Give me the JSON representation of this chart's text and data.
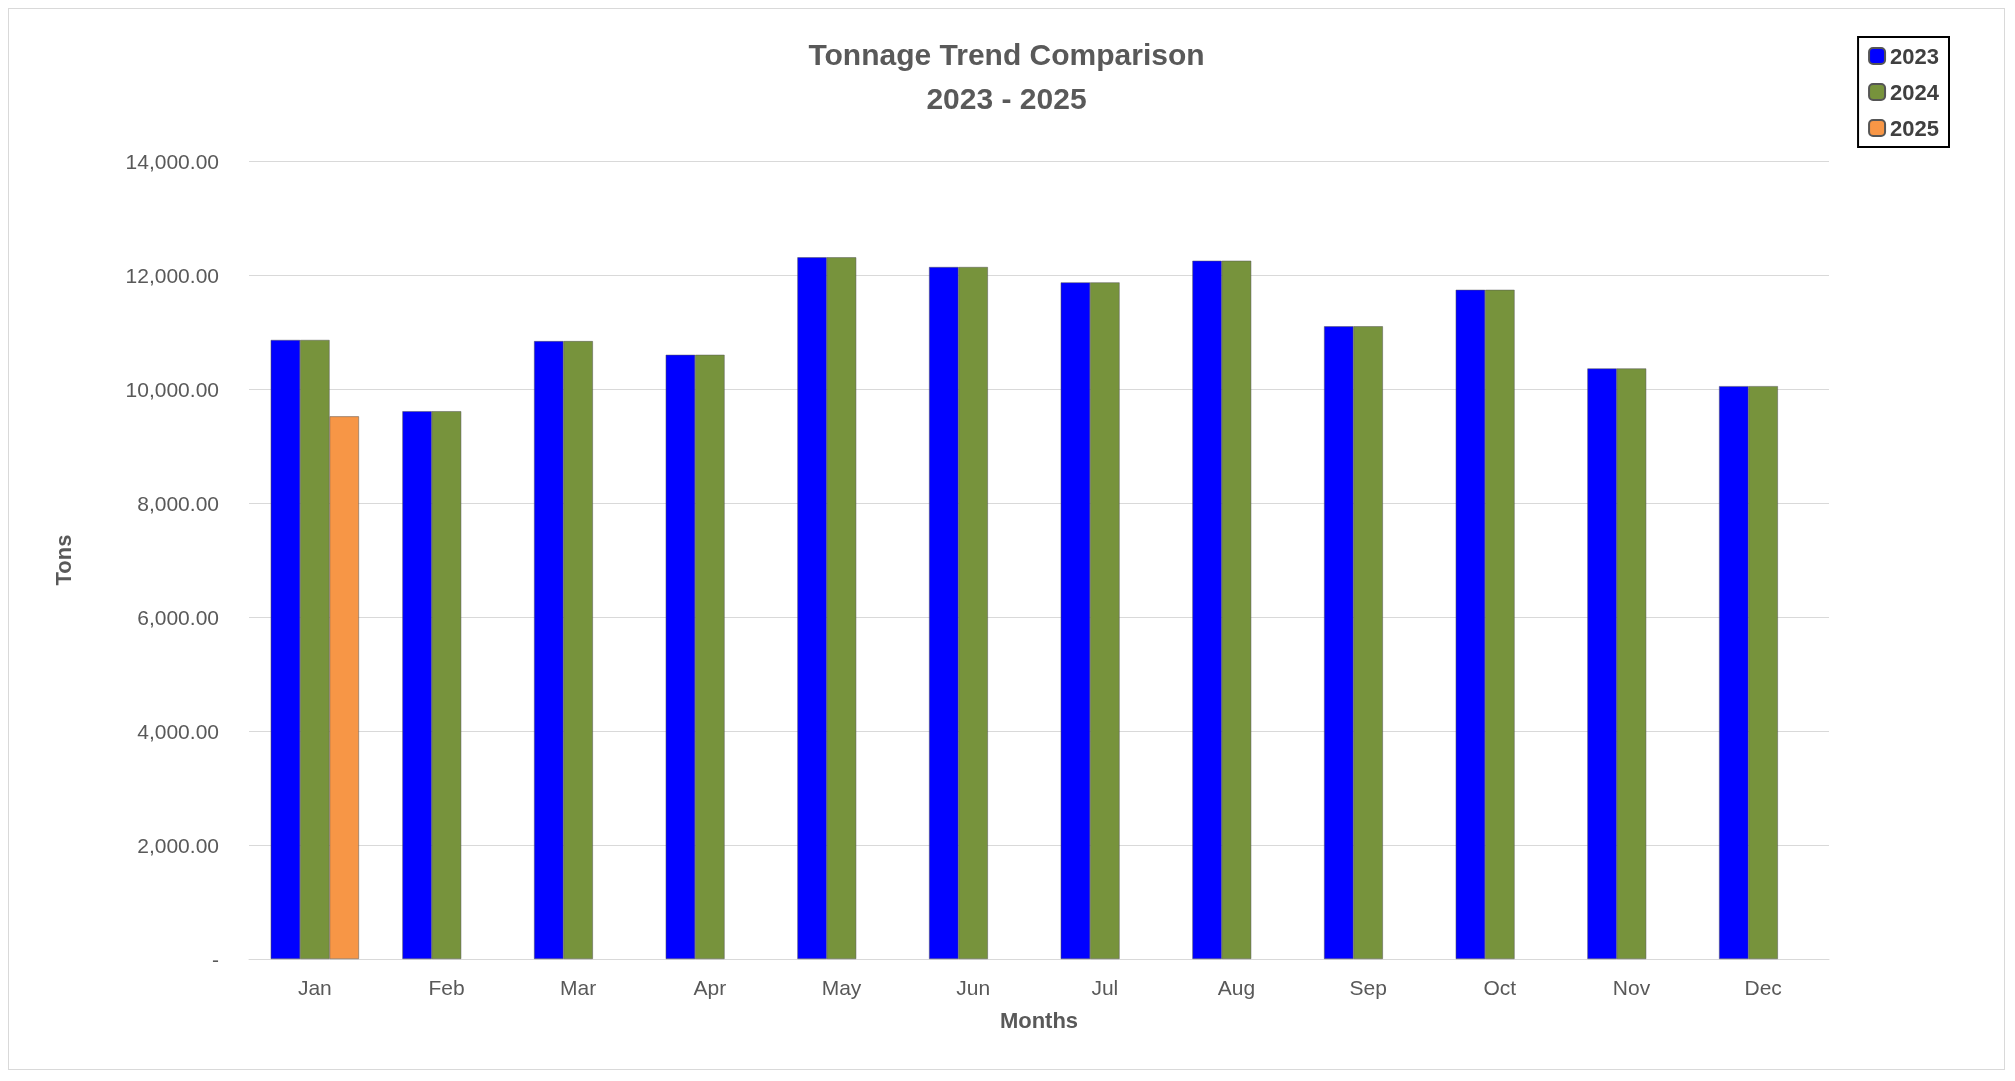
{
  "chart_data": {
    "type": "bar",
    "title": "Tonnage Trend Comparison\n2023 - 2025",
    "xlabel": "Months",
    "ylabel": "Tons",
    "categories": [
      "Jan",
      "Feb",
      "Mar",
      "Apr",
      "May",
      "Jun",
      "Jul",
      "Aug",
      "Sep",
      "Oct",
      "Nov",
      "Dec"
    ],
    "series": [
      {
        "name": "2023",
        "color": "#0000ff",
        "values": [
          10860,
          9610,
          10840,
          10600,
          12310,
          12140,
          11870,
          12250,
          11100,
          11740,
          10360,
          10050
        ]
      },
      {
        "name": "2024",
        "color": "#77933c",
        "values": [
          10860,
          9610,
          10840,
          10600,
          12310,
          12140,
          11870,
          12250,
          11100,
          11740,
          10360,
          10050
        ]
      },
      {
        "name": "2025",
        "color": "#f79646",
        "values": [
          9520,
          null,
          null,
          null,
          null,
          null,
          null,
          null,
          null,
          null,
          null,
          null
        ]
      }
    ],
    "ylim": [
      0,
      14000
    ],
    "yticks": [
      {
        "value": 0,
        "label": "-"
      },
      {
        "value": 2000,
        "label": "2,000.00"
      },
      {
        "value": 4000,
        "label": "4,000.00"
      },
      {
        "value": 6000,
        "label": "6,000.00"
      },
      {
        "value": 8000,
        "label": "8,000.00"
      },
      {
        "value": 10000,
        "label": "10,000.00"
      },
      {
        "value": 12000,
        "label": "12,000.00"
      },
      {
        "value": 14000,
        "label": "14,000.00"
      }
    ],
    "grid": "y",
    "legend": "top right"
  }
}
